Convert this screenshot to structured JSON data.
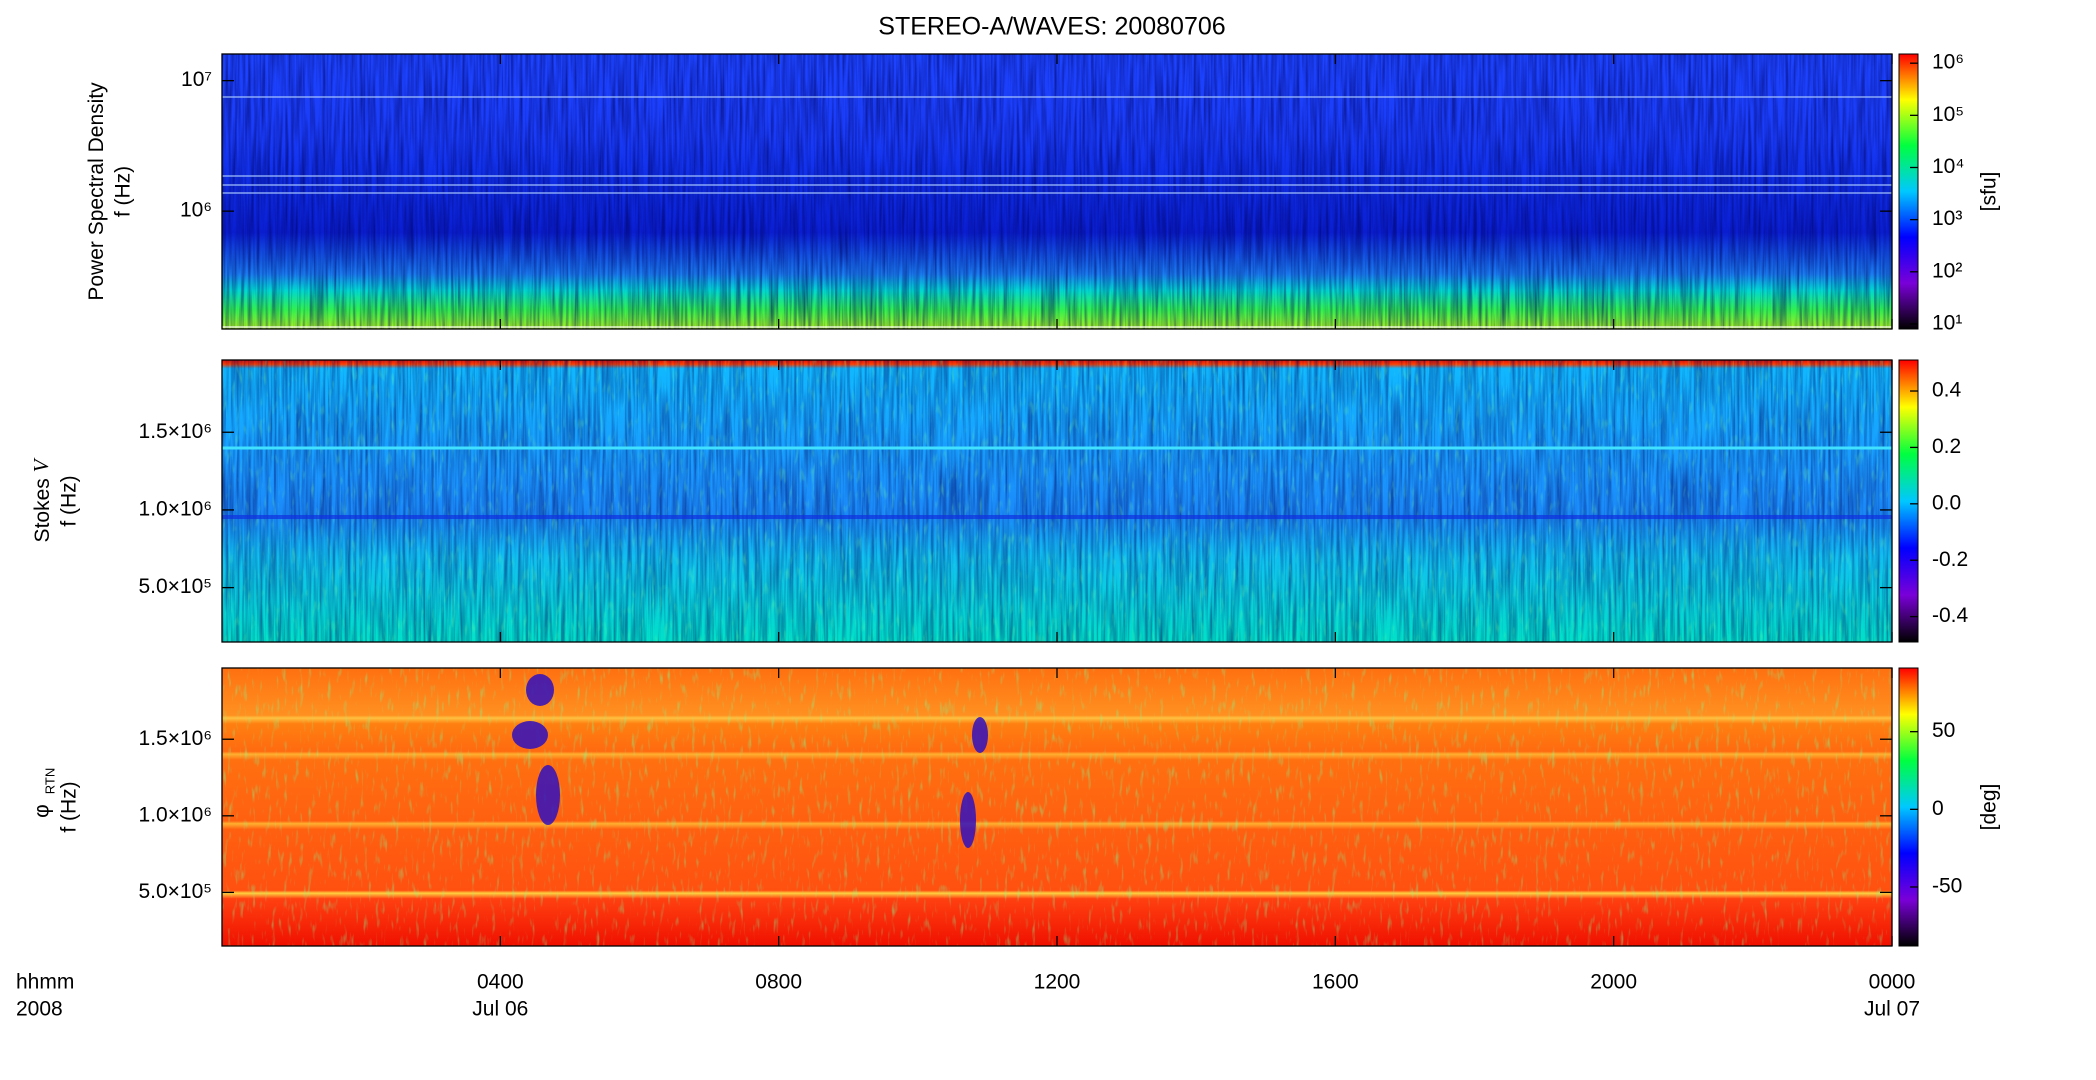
{
  "chart_data": [
    {
      "type": "spectrogram",
      "title": "STEREO-A/WAVES: 20080706",
      "ylabel": "Power Spectral Density",
      "ylabel_unit": "f (Hz)",
      "ylog": true,
      "ylim": [
        125000,
        16000000
      ],
      "yticks": [
        {
          "value": 1000000,
          "label": "10⁶"
        },
        {
          "value": 10000000,
          "label": "10⁷"
        }
      ],
      "colorbar": {
        "label": "[sfu]",
        "log": true,
        "lim": [
          8,
          1500000
        ],
        "colors": [
          "#000000",
          "#7a00d8",
          "#0000ff",
          "#00c8ff",
          "#00ff40",
          "#ffff00",
          "#ff0000"
        ],
        "ticks": [
          {
            "value": 10,
            "label": "10¹"
          },
          {
            "value": 100,
            "label": "10²"
          },
          {
            "value": 1000,
            "label": "10³"
          },
          {
            "value": 10000,
            "label": "10⁴"
          },
          {
            "value": 100000,
            "label": "10⁵"
          },
          {
            "value": 1000000,
            "label": "10⁶"
          }
        ]
      }
    },
    {
      "type": "spectrogram",
      "ylabel": "Stokes",
      "ylabel_symbol": "V",
      "ylabel_unit": "f (Hz)",
      "ylog": false,
      "ylim": [
        150000,
        1965000
      ],
      "yticks": [
        {
          "value": 500000,
          "label": "5.0×10⁵"
        },
        {
          "value": 1000000,
          "label": "1.0×10⁶"
        },
        {
          "value": 1500000,
          "label": "1.5×10⁶"
        }
      ],
      "colorbar": {
        "log": false,
        "lim": [
          -0.49,
          0.51
        ],
        "colors": [
          "#000000",
          "#7a00d8",
          "#0000ff",
          "#00c8ff",
          "#00ff40",
          "#ffff00",
          "#ff0000"
        ],
        "ticks": [
          -0.4,
          -0.2,
          {
            "value": 0,
            "label": "0.0"
          },
          0.2,
          0.4
        ]
      }
    },
    {
      "type": "spectrogram",
      "ylabel": "φ",
      "ylabel_sub": "RTN",
      "ylabel_unit": "f (Hz)",
      "ylog": false,
      "ylim": [
        150000,
        1965000
      ],
      "yticks": [
        {
          "value": 500000,
          "label": "5.0×10⁵"
        },
        {
          "value": 1000000,
          "label": "1.0×10⁶"
        },
        {
          "value": 1500000,
          "label": "1.5×10⁶"
        }
      ],
      "colorbar": {
        "label": "[deg]",
        "log": false,
        "lim": [
          -88,
          91
        ],
        "colors": [
          "#000000",
          "#7a00d8",
          "#0000ff",
          "#00c8ff",
          "#00ff40",
          "#ffff00",
          "#ff0000"
        ],
        "ticks": [
          -50,
          0,
          50
        ]
      },
      "xlim": [
        0,
        24
      ],
      "xlabel": "hhmm",
      "xlabel_year": "2008",
      "xticks": [
        {
          "value": 4,
          "label": "0400"
        },
        {
          "value": 8,
          "label": "0800"
        },
        {
          "value": 12,
          "label": "1200"
        },
        {
          "value": 16,
          "label": "1600"
        },
        {
          "value": 20,
          "label": "2000"
        },
        {
          "value": 24,
          "label": "0000"
        }
      ],
      "date_labels": [
        {
          "value": 4,
          "label": "Jul 06"
        },
        {
          "value": 24,
          "label": "Jul 07"
        }
      ]
    }
  ]
}
